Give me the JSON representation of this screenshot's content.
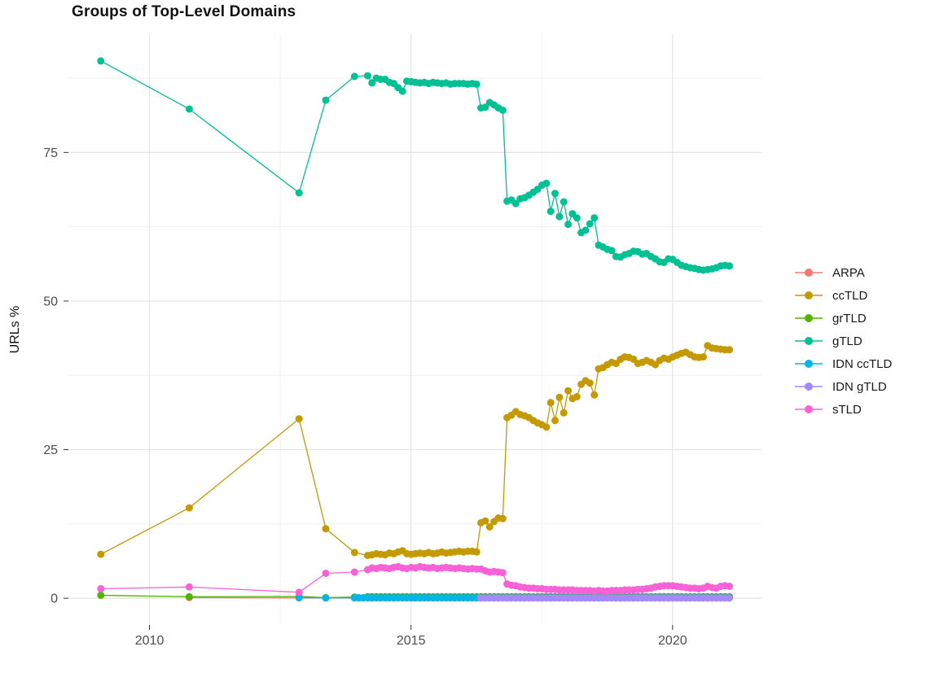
{
  "chart_data": {
    "type": "scatter",
    "title": "Groups of Top-Level Domains",
    "xlabel": "",
    "ylabel": "URLs %",
    "x_ticks": [
      2010,
      2015,
      2020
    ],
    "x_minor_ticks": [
      2012.5,
      2017.5
    ],
    "y_ticks": [
      0,
      25,
      50,
      75
    ],
    "y_minor_ticks": [
      12.5,
      37.5,
      62.5,
      87.5
    ],
    "xlim": [
      2008.45,
      2021.7
    ],
    "ylim": [
      -4.5,
      94.9
    ],
    "grid": true,
    "legend_position": "right",
    "marker": "point-with-line",
    "series": [
      {
        "name": "ARPA",
        "color": "#F8766D",
        "points": [
          [
            2010.76,
            0.12
          ],
          [
            2012.86,
            0.06
          ],
          [
            2013.37,
            0.05
          ]
        ],
        "flat": {
          "from": 2013.92,
          "to": 2021.08,
          "step": 0.083333,
          "value": 0.04
        }
      },
      {
        "name": "ccTLD",
        "color": "#C49A00",
        "points": [
          [
            2009.07,
            7.4
          ],
          [
            2010.76,
            15.2
          ],
          [
            2012.86,
            30.2
          ],
          [
            2013.37,
            11.7
          ],
          [
            2013.92,
            7.7
          ]
        ],
        "dense": {
          "start": 2014.17,
          "step": 0.083333,
          "values": [
            7.2,
            7.3,
            7.5,
            7.4,
            7.3,
            7.6,
            7.5,
            7.8,
            8.0,
            7.5,
            7.4,
            7.5,
            7.6,
            7.5,
            7.7,
            7.5,
            7.6,
            7.8,
            7.6,
            7.7,
            7.8,
            7.9,
            7.8,
            7.9,
            7.9,
            7.8,
            12.7,
            13.0,
            12.0,
            12.9,
            13.5,
            13.4,
            30.4,
            30.8,
            31.4,
            30.9,
            30.7,
            30.4,
            29.9,
            29.5,
            29.2,
            28.8,
            32.9,
            29.9,
            33.8,
            31.2,
            34.9,
            33.6,
            33.9,
            36.0,
            36.6,
            36.2,
            34.2,
            38.6,
            38.8,
            39.3,
            39.7,
            39.5,
            40.2,
            40.6,
            40.5,
            40.2,
            39.5,
            39.7,
            40.0,
            39.7,
            39.3,
            40.0,
            40.4,
            40.2,
            40.6,
            40.9,
            41.2,
            41.4,
            41.0,
            40.6,
            40.5,
            40.6,
            42.5,
            42.1,
            42.0,
            41.9,
            41.8,
            41.8
          ]
        }
      },
      {
        "name": "grTLD",
        "color": "#53B400",
        "points": [
          [
            2009.07,
            0.5
          ],
          [
            2010.76,
            0.25
          ],
          [
            2012.86,
            0.3
          ],
          [
            2013.37,
            0.1
          ],
          [
            2013.92,
            0.2
          ]
        ],
        "flat": {
          "from": 2014.17,
          "to": 2021.08,
          "step": 0.083333,
          "value": 0.25
        }
      },
      {
        "name": "gTLD",
        "color": "#00C094",
        "points": [
          [
            2009.07,
            90.4
          ],
          [
            2010.76,
            82.3
          ],
          [
            2012.86,
            68.2
          ],
          [
            2013.37,
            83.8
          ],
          [
            2013.92,
            87.8
          ]
        ],
        "dense": {
          "start": 2014.17,
          "step": 0.083333,
          "values": [
            87.9,
            86.7,
            87.5,
            87.3,
            87.3,
            86.8,
            86.6,
            85.9,
            85.3,
            87.0,
            86.9,
            86.8,
            86.7,
            86.8,
            86.6,
            86.8,
            86.7,
            86.6,
            86.7,
            86.5,
            86.6,
            86.6,
            86.6,
            86.5,
            86.6,
            86.5,
            82.5,
            82.6,
            83.4,
            83.0,
            82.5,
            82.1,
            66.8,
            67.0,
            66.4,
            67.2,
            67.4,
            67.8,
            68.3,
            68.8,
            69.5,
            69.8,
            65.1,
            68.1,
            64.2,
            66.7,
            62.9,
            64.7,
            64.0,
            61.5,
            61.9,
            63.0,
            64.0,
            59.4,
            59.1,
            58.7,
            58.5,
            57.5,
            57.4,
            57.8,
            58.0,
            58.4,
            58.3,
            57.9,
            58.0,
            57.5,
            57.1,
            56.6,
            56.5,
            57.1,
            57.0,
            56.5,
            56.0,
            55.8,
            55.6,
            55.5,
            55.3,
            55.2,
            55.3,
            55.4,
            55.6,
            55.9,
            56.0,
            55.9
          ]
        }
      },
      {
        "name": "IDN ccTLD",
        "color": "#00B6EB",
        "points": [
          [
            2012.86,
            0.1
          ],
          [
            2013.37,
            0.06
          ]
        ],
        "flat": {
          "from": 2013.92,
          "to": 2021.08,
          "step": 0.083333,
          "value": 0.08
        }
      },
      {
        "name": "IDN gTLD",
        "color": "#A58AFF",
        "points": [],
        "flat": {
          "from": 2016.33,
          "to": 2021.08,
          "step": 0.083333,
          "value": 0.04
        }
      },
      {
        "name": "sTLD",
        "color": "#FB61D7",
        "points": [
          [
            2009.07,
            1.6
          ],
          [
            2010.76,
            1.9
          ],
          [
            2012.86,
            1.0
          ],
          [
            2013.37,
            4.2
          ],
          [
            2013.92,
            4.4
          ]
        ],
        "dense": {
          "start": 2014.17,
          "step": 0.083333,
          "values": [
            4.8,
            5.1,
            5.0,
            5.2,
            5.1,
            5.0,
            5.2,
            5.3,
            5.1,
            5.0,
            5.2,
            5.1,
            5.3,
            5.2,
            5.1,
            5.2,
            5.0,
            5.1,
            5.2,
            5.1,
            5.0,
            5.1,
            5.0,
            4.9,
            5.0,
            4.9,
            4.9,
            4.6,
            4.4,
            4.5,
            4.4,
            4.3,
            2.4,
            2.2,
            2.1,
            1.9,
            1.8,
            1.7,
            1.7,
            1.6,
            1.6,
            1.5,
            1.5,
            1.5,
            1.4,
            1.4,
            1.4,
            1.4,
            1.3,
            1.3,
            1.3,
            1.3,
            1.2,
            1.3,
            1.2,
            1.2,
            1.3,
            1.3,
            1.3,
            1.4,
            1.4,
            1.4,
            1.5,
            1.5,
            1.6,
            1.7,
            1.9,
            2.0,
            2.1,
            2.1,
            2.1,
            2.0,
            1.9,
            1.8,
            1.7,
            1.7,
            1.6,
            1.7,
            2.0,
            1.8,
            1.7,
            2.0,
            2.1,
            2.0
          ]
        }
      }
    ],
    "style": {
      "grid_major_color": "#e4e4e4",
      "grid_minor_color": "#efefef",
      "tick_color": "#333333",
      "tick_label_color": "#4d4d4d",
      "point_radius": 4.5
    }
  }
}
